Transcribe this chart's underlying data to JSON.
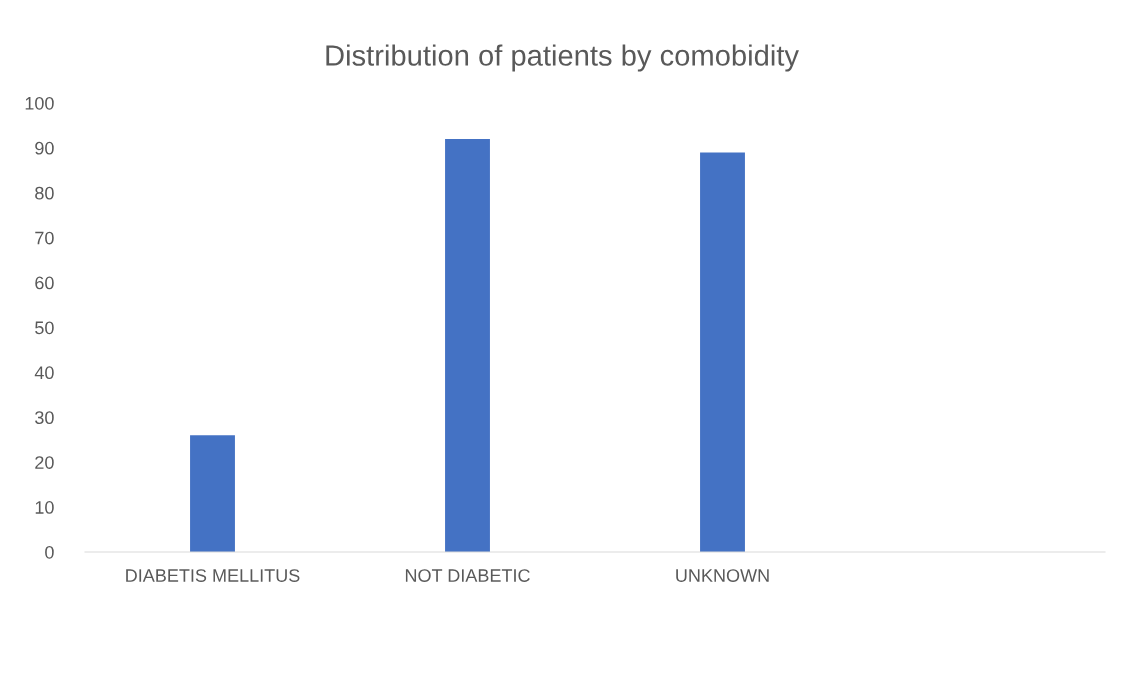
{
  "chart_data": {
    "type": "bar",
    "title": "Distribution of patients by comobidity",
    "categories": [
      "DIABETIS MELLITUS",
      "NOT DIABETIC",
      "UNKNOWN",
      null
    ],
    "values": [
      26,
      92,
      89,
      null
    ],
    "color": "#4472c4",
    "ylim": [
      0,
      100
    ],
    "yticks": [
      0,
      10,
      20,
      30,
      40,
      50,
      60,
      70,
      80,
      90,
      100
    ],
    "grid": false,
    "legend": false
  }
}
